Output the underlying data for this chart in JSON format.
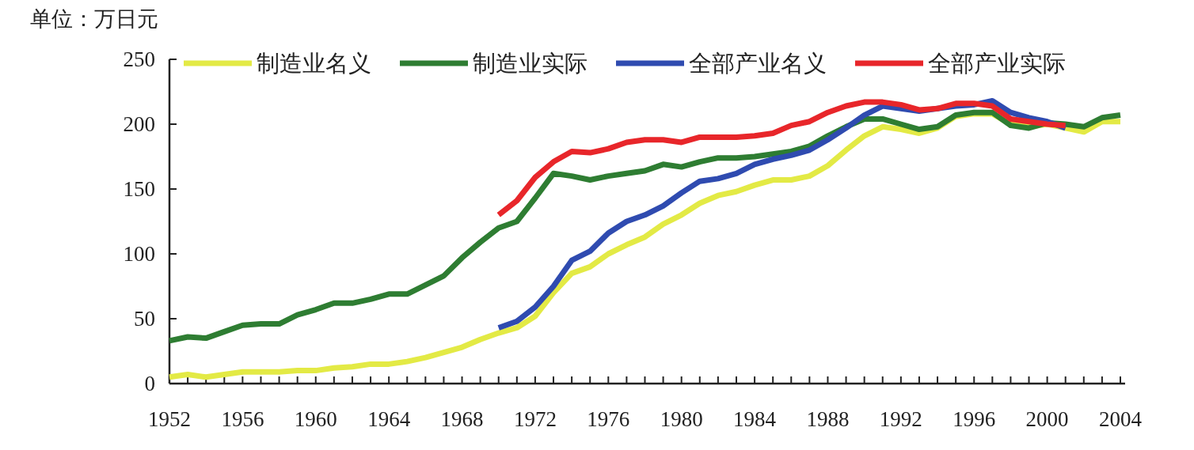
{
  "chart_data": {
    "type": "line",
    "ylabel": "单位：万日元",
    "x": [
      1952,
      1953,
      1954,
      1955,
      1956,
      1957,
      1958,
      1959,
      1960,
      1961,
      1962,
      1963,
      1964,
      1965,
      1966,
      1967,
      1968,
      1969,
      1970,
      1971,
      1972,
      1973,
      1974,
      1975,
      1976,
      1977,
      1978,
      1979,
      1980,
      1981,
      1982,
      1983,
      1984,
      1985,
      1986,
      1987,
      1988,
      1989,
      1990,
      1991,
      1992,
      1993,
      1994,
      1995,
      1996,
      1997,
      1998,
      1999,
      2000,
      2001,
      2002,
      2003,
      2004
    ],
    "series": [
      {
        "name": "制造业名义",
        "color": "#e3ea45",
        "values": [
          5,
          7,
          5,
          7,
          9,
          9,
          9,
          10,
          10,
          12,
          13,
          15,
          15,
          17,
          20,
          24,
          28,
          34,
          39,
          43,
          52,
          70,
          85,
          90,
          100,
          107,
          113,
          123,
          130,
          139,
          145,
          148,
          153,
          157,
          157,
          160,
          168,
          180,
          191,
          198,
          196,
          193,
          197,
          206,
          208,
          208,
          200,
          198,
          200,
          197,
          194,
          202,
          202
        ]
      },
      {
        "name": "制造业实际",
        "color": "#2e7d32",
        "values": [
          33,
          36,
          35,
          40,
          45,
          46,
          46,
          53,
          57,
          62,
          62,
          65,
          69,
          69,
          76,
          83,
          97,
          109,
          120,
          125,
          143,
          162,
          160,
          157,
          160,
          162,
          164,
          169,
          167,
          171,
          174,
          174,
          175,
          177,
          179,
          183,
          191,
          198,
          204,
          204,
          200,
          196,
          198,
          207,
          209,
          209,
          199,
          197,
          201,
          200,
          198,
          205,
          207
        ]
      },
      {
        "name": "全部产业名义",
        "color": "#2f4bb0",
        "values": [
          null,
          null,
          null,
          null,
          null,
          null,
          null,
          null,
          null,
          null,
          null,
          null,
          null,
          null,
          null,
          null,
          null,
          null,
          43,
          48,
          59,
          75,
          95,
          102,
          116,
          125,
          130,
          137,
          147,
          156,
          158,
          162,
          169,
          173,
          176,
          180,
          188,
          197,
          207,
          214,
          212,
          210,
          212,
          214,
          215,
          218,
          209,
          205,
          202,
          197,
          null,
          null,
          null
        ]
      },
      {
        "name": "全部产业实际",
        "color": "#e8262a",
        "values": [
          null,
          null,
          null,
          null,
          null,
          null,
          null,
          null,
          null,
          null,
          null,
          null,
          null,
          null,
          null,
          null,
          null,
          null,
          130,
          141,
          159,
          171,
          179,
          178,
          181,
          186,
          188,
          188,
          186,
          190,
          190,
          190,
          191,
          193,
          199,
          202,
          209,
          214,
          217,
          217,
          215,
          211,
          212,
          216,
          216,
          214,
          204,
          202,
          200,
          199,
          null,
          null,
          null
        ]
      }
    ],
    "xlim": [
      1952,
      2004
    ],
    "ylim": [
      0,
      250
    ],
    "xticks": [
      1952,
      {
        "value": 1953,
        "label": null
      },
      {
        "value": 1954,
        "label": null
      },
      {
        "value": 1955,
        "label": null
      },
      1956,
      {
        "value": 1957,
        "label": null
      },
      {
        "value": 1958,
        "label": null
      },
      {
        "value": 1959,
        "label": null
      },
      1960,
      {
        "value": 1961,
        "label": null
      },
      {
        "value": 1962,
        "label": null
      },
      {
        "value": 1963,
        "label": null
      },
      1964,
      {
        "value": 1965,
        "label": null
      },
      {
        "value": 1966,
        "label": null
      },
      {
        "value": 1967,
        "label": null
      },
      1968,
      {
        "value": 1969,
        "label": null
      },
      {
        "value": 1970,
        "label": null
      },
      {
        "value": 1971,
        "label": null
      },
      1972,
      {
        "value": 1973,
        "label": null
      },
      {
        "value": 1974,
        "label": null
      },
      {
        "value": 1975,
        "label": null
      },
      1976,
      {
        "value": 1977,
        "label": null
      },
      {
        "value": 1978,
        "label": null
      },
      {
        "value": 1979,
        "label": null
      },
      1980,
      {
        "value": 1981,
        "label": null
      },
      {
        "value": 1982,
        "label": null
      },
      {
        "value": 1983,
        "label": null
      },
      1984,
      {
        "value": 1985,
        "label": null
      },
      {
        "value": 1986,
        "label": null
      },
      {
        "value": 1987,
        "label": null
      },
      1988,
      {
        "value": 1989,
        "label": null
      },
      {
        "value": 1990,
        "label": null
      },
      {
        "value": 1991,
        "label": null
      },
      1992,
      {
        "value": 1993,
        "label": null
      },
      {
        "value": 1994,
        "label": null
      },
      {
        "value": 1995,
        "label": null
      },
      1996,
      {
        "value": 1997,
        "label": null
      },
      {
        "value": 1998,
        "label": null
      },
      {
        "value": 1999,
        "label": null
      },
      2000,
      {
        "value": 2001,
        "label": null
      },
      {
        "value": 2002,
        "label": null
      },
      {
        "value": 2003,
        "label": null
      },
      2004
    ],
    "yticks": [
      0,
      50,
      100,
      150,
      200,
      250
    ],
    "legend": "top",
    "grid": false,
    "marker": "none",
    "line_style": "solid"
  }
}
